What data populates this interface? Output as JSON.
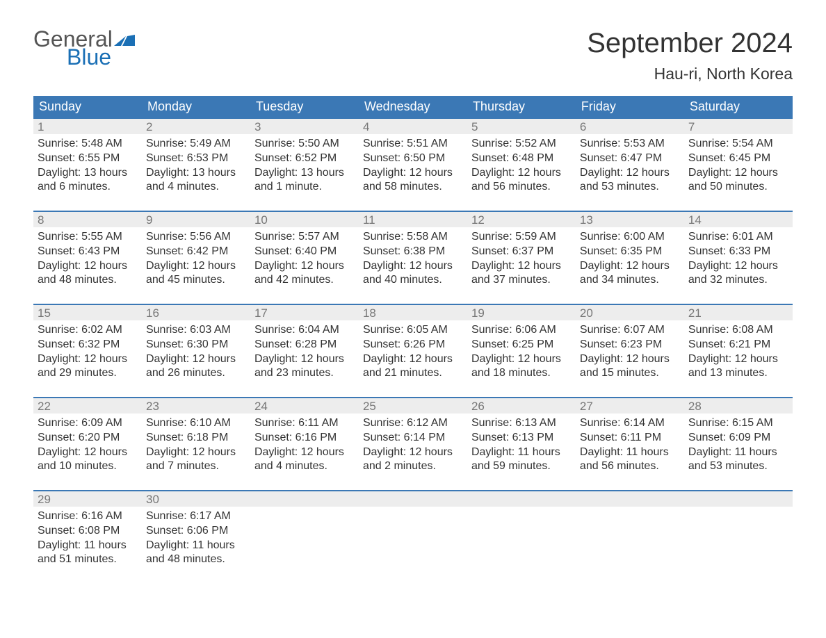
{
  "logo": {
    "word1": "General",
    "word2": "Blue",
    "icon_color": "#1a6fb5",
    "text_color_1": "#555555",
    "text_color_2": "#1a6fb5"
  },
  "title": "September 2024",
  "location": "Hau-ri, North Korea",
  "colors": {
    "header_bg": "#3b78b5",
    "header_text": "#ffffff",
    "strip_bg": "#ededed",
    "strip_text": "#777777",
    "border_accent": "#3b78b5",
    "body_text": "#333333",
    "page_bg": "#ffffff"
  },
  "typography": {
    "title_fontsize": 40,
    "location_fontsize": 23,
    "header_fontsize": 18,
    "daynum_fontsize": 17,
    "body_fontsize": 16
  },
  "layout": {
    "columns": 7,
    "rows": 5,
    "col_width_pct": 14.285
  },
  "day_labels": [
    "Sunday",
    "Monday",
    "Tuesday",
    "Wednesday",
    "Thursday",
    "Friday",
    "Saturday"
  ],
  "weeks": [
    [
      {
        "n": "1",
        "sunrise": "Sunrise: 5:48 AM",
        "sunset": "Sunset: 6:55 PM",
        "day1": "Daylight: 13 hours",
        "day2": "and 6 minutes."
      },
      {
        "n": "2",
        "sunrise": "Sunrise: 5:49 AM",
        "sunset": "Sunset: 6:53 PM",
        "day1": "Daylight: 13 hours",
        "day2": "and 4 minutes."
      },
      {
        "n": "3",
        "sunrise": "Sunrise: 5:50 AM",
        "sunset": "Sunset: 6:52 PM",
        "day1": "Daylight: 13 hours",
        "day2": "and 1 minute."
      },
      {
        "n": "4",
        "sunrise": "Sunrise: 5:51 AM",
        "sunset": "Sunset: 6:50 PM",
        "day1": "Daylight: 12 hours",
        "day2": "and 58 minutes."
      },
      {
        "n": "5",
        "sunrise": "Sunrise: 5:52 AM",
        "sunset": "Sunset: 6:48 PM",
        "day1": "Daylight: 12 hours",
        "day2": "and 56 minutes."
      },
      {
        "n": "6",
        "sunrise": "Sunrise: 5:53 AM",
        "sunset": "Sunset: 6:47 PM",
        "day1": "Daylight: 12 hours",
        "day2": "and 53 minutes."
      },
      {
        "n": "7",
        "sunrise": "Sunrise: 5:54 AM",
        "sunset": "Sunset: 6:45 PM",
        "day1": "Daylight: 12 hours",
        "day2": "and 50 minutes."
      }
    ],
    [
      {
        "n": "8",
        "sunrise": "Sunrise: 5:55 AM",
        "sunset": "Sunset: 6:43 PM",
        "day1": "Daylight: 12 hours",
        "day2": "and 48 minutes."
      },
      {
        "n": "9",
        "sunrise": "Sunrise: 5:56 AM",
        "sunset": "Sunset: 6:42 PM",
        "day1": "Daylight: 12 hours",
        "day2": "and 45 minutes."
      },
      {
        "n": "10",
        "sunrise": "Sunrise: 5:57 AM",
        "sunset": "Sunset: 6:40 PM",
        "day1": "Daylight: 12 hours",
        "day2": "and 42 minutes."
      },
      {
        "n": "11",
        "sunrise": "Sunrise: 5:58 AM",
        "sunset": "Sunset: 6:38 PM",
        "day1": "Daylight: 12 hours",
        "day2": "and 40 minutes."
      },
      {
        "n": "12",
        "sunrise": "Sunrise: 5:59 AM",
        "sunset": "Sunset: 6:37 PM",
        "day1": "Daylight: 12 hours",
        "day2": "and 37 minutes."
      },
      {
        "n": "13",
        "sunrise": "Sunrise: 6:00 AM",
        "sunset": "Sunset: 6:35 PM",
        "day1": "Daylight: 12 hours",
        "day2": "and 34 minutes."
      },
      {
        "n": "14",
        "sunrise": "Sunrise: 6:01 AM",
        "sunset": "Sunset: 6:33 PM",
        "day1": "Daylight: 12 hours",
        "day2": "and 32 minutes."
      }
    ],
    [
      {
        "n": "15",
        "sunrise": "Sunrise: 6:02 AM",
        "sunset": "Sunset: 6:32 PM",
        "day1": "Daylight: 12 hours",
        "day2": "and 29 minutes."
      },
      {
        "n": "16",
        "sunrise": "Sunrise: 6:03 AM",
        "sunset": "Sunset: 6:30 PM",
        "day1": "Daylight: 12 hours",
        "day2": "and 26 minutes."
      },
      {
        "n": "17",
        "sunrise": "Sunrise: 6:04 AM",
        "sunset": "Sunset: 6:28 PM",
        "day1": "Daylight: 12 hours",
        "day2": "and 23 minutes."
      },
      {
        "n": "18",
        "sunrise": "Sunrise: 6:05 AM",
        "sunset": "Sunset: 6:26 PM",
        "day1": "Daylight: 12 hours",
        "day2": "and 21 minutes."
      },
      {
        "n": "19",
        "sunrise": "Sunrise: 6:06 AM",
        "sunset": "Sunset: 6:25 PM",
        "day1": "Daylight: 12 hours",
        "day2": "and 18 minutes."
      },
      {
        "n": "20",
        "sunrise": "Sunrise: 6:07 AM",
        "sunset": "Sunset: 6:23 PM",
        "day1": "Daylight: 12 hours",
        "day2": "and 15 minutes."
      },
      {
        "n": "21",
        "sunrise": "Sunrise: 6:08 AM",
        "sunset": "Sunset: 6:21 PM",
        "day1": "Daylight: 12 hours",
        "day2": "and 13 minutes."
      }
    ],
    [
      {
        "n": "22",
        "sunrise": "Sunrise: 6:09 AM",
        "sunset": "Sunset: 6:20 PM",
        "day1": "Daylight: 12 hours",
        "day2": "and 10 minutes."
      },
      {
        "n": "23",
        "sunrise": "Sunrise: 6:10 AM",
        "sunset": "Sunset: 6:18 PM",
        "day1": "Daylight: 12 hours",
        "day2": "and 7 minutes."
      },
      {
        "n": "24",
        "sunrise": "Sunrise: 6:11 AM",
        "sunset": "Sunset: 6:16 PM",
        "day1": "Daylight: 12 hours",
        "day2": "and 4 minutes."
      },
      {
        "n": "25",
        "sunrise": "Sunrise: 6:12 AM",
        "sunset": "Sunset: 6:14 PM",
        "day1": "Daylight: 12 hours",
        "day2": "and 2 minutes."
      },
      {
        "n": "26",
        "sunrise": "Sunrise: 6:13 AM",
        "sunset": "Sunset: 6:13 PM",
        "day1": "Daylight: 11 hours",
        "day2": "and 59 minutes."
      },
      {
        "n": "27",
        "sunrise": "Sunrise: 6:14 AM",
        "sunset": "Sunset: 6:11 PM",
        "day1": "Daylight: 11 hours",
        "day2": "and 56 minutes."
      },
      {
        "n": "28",
        "sunrise": "Sunrise: 6:15 AM",
        "sunset": "Sunset: 6:09 PM",
        "day1": "Daylight: 11 hours",
        "day2": "and 53 minutes."
      }
    ],
    [
      {
        "n": "29",
        "sunrise": "Sunrise: 6:16 AM",
        "sunset": "Sunset: 6:08 PM",
        "day1": "Daylight: 11 hours",
        "day2": "and 51 minutes."
      },
      {
        "n": "30",
        "sunrise": "Sunrise: 6:17 AM",
        "sunset": "Sunset: 6:06 PM",
        "day1": "Daylight: 11 hours",
        "day2": "and 48 minutes."
      },
      null,
      null,
      null,
      null,
      null
    ]
  ]
}
